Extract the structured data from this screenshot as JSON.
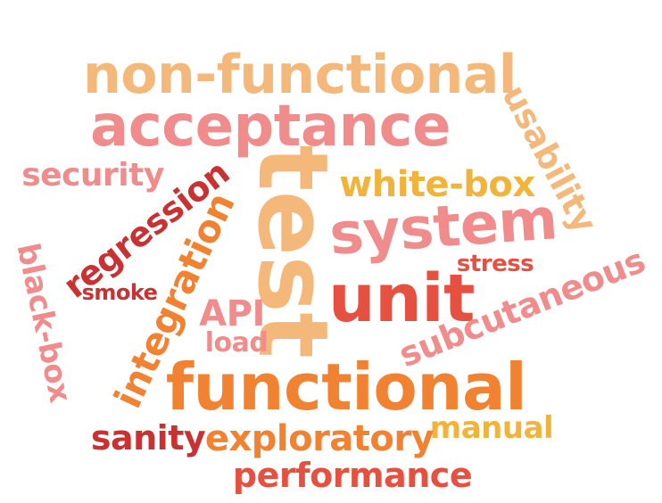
{
  "words": [
    {
      "text": "non-functional",
      "color": "#f4b87a"
    },
    {
      "text": "acceptance",
      "color": "#f08c8c"
    },
    {
      "text": "usability",
      "color": "#f4b87a"
    },
    {
      "text": "security",
      "color": "#f08c8c"
    },
    {
      "text": "test",
      "color": "#f4b87a"
    },
    {
      "text": "white-box",
      "color": "#f0b43c"
    },
    {
      "text": "regression",
      "color": "#c83232"
    },
    {
      "text": "system",
      "color": "#f08c8c"
    },
    {
      "text": "black-box",
      "color": "#f08c8c"
    },
    {
      "text": "integration",
      "color": "#f08232"
    },
    {
      "text": "stress",
      "color": "#e65040"
    },
    {
      "text": "smoke",
      "color": "#c83232"
    },
    {
      "text": "unit",
      "color": "#e65040"
    },
    {
      "text": "subcutaneous",
      "color": "#f08c8c"
    },
    {
      "text": "API",
      "color": "#f08c8c"
    },
    {
      "text": "load",
      "color": "#f08c8c"
    },
    {
      "text": "functional",
      "color": "#f08232"
    },
    {
      "text": "manual",
      "color": "#f0b43c"
    },
    {
      "text": "sanity",
      "color": "#c83232"
    },
    {
      "text": "exploratory",
      "color": "#f08232"
    },
    {
      "text": "performance",
      "color": "#e65040"
    }
  ]
}
